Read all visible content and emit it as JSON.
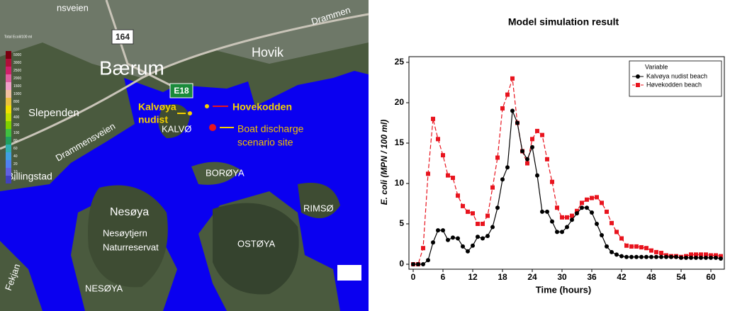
{
  "map": {
    "legend": {
      "title": "Total Ecoli/100 ml",
      "labels": [
        "5000",
        "3000",
        "2500",
        "2000",
        "1500",
        "1000",
        "800",
        "600",
        "400",
        "200",
        "100",
        "80",
        "60",
        "40",
        "20",
        "10",
        "0"
      ]
    },
    "labels": {
      "road_top": "nsveien",
      "road_164": "164",
      "town": "Bærum",
      "road_e18": "E18",
      "hovik": "Hovik",
      "drammen": "Drammen",
      "slependen": "Slependen",
      "kalvoya_1": "Kalvøya",
      "kalvoya_2": "nudist",
      "hovekodden": "Hovekodden",
      "boat_1": "Boat discharge",
      "boat_2": "scenario site",
      "kalvoya_island": "KALVØ",
      "boroya": "BORØYA",
      "billingstad": "Billingstad",
      "drammensveien": "Drammensveien",
      "nesoya": "Nesøya",
      "nesoytjern_1": "Nesøytjern",
      "nesoytjern_2": "Naturreservat",
      "ostoya": "OSTØYA",
      "rimso": "RIMSØ",
      "nesoya_small": "NESØYA",
      "fekjan": "Fekjan"
    }
  },
  "chart_data": {
    "type": "line",
    "title": "Model simulation result",
    "x_label": "Time (hours)",
    "y_label": "E. coli (MPN / 100 ml)",
    "legend_title": "Variable",
    "legend": "upper right",
    "x": [
      0,
      1,
      2,
      3,
      4,
      5,
      6,
      7,
      8,
      9,
      10,
      11,
      12,
      13,
      14,
      15,
      16,
      17,
      18,
      19,
      20,
      21,
      22,
      23,
      24,
      25,
      26,
      27,
      28,
      29,
      30,
      31,
      32,
      33,
      34,
      35,
      36,
      37,
      38,
      39,
      40,
      41,
      42,
      43,
      44,
      45,
      46,
      47,
      48,
      49,
      50,
      51,
      52,
      53,
      54,
      55,
      56,
      57,
      58,
      59,
      60,
      61,
      62
    ],
    "xlim": [
      0,
      62
    ],
    "ylim": [
      0,
      25
    ],
    "xticks": [
      0,
      6,
      12,
      18,
      24,
      30,
      36,
      42,
      48,
      54,
      60
    ],
    "yticks": [
      0,
      5,
      10,
      15,
      20,
      25
    ],
    "series": [
      {
        "name": "Kalvøya nudist beach",
        "color": "#000000",
        "marker": "circle",
        "dash": "solid",
        "values": [
          0,
          0,
          0,
          0.5,
          2.7,
          4.2,
          4.2,
          3,
          3.3,
          3.2,
          2.2,
          1.6,
          2.3,
          3.4,
          3.2,
          3.5,
          4.6,
          7,
          10.5,
          12,
          19,
          17.5,
          14,
          13,
          14.5,
          11,
          6.5,
          6.5,
          5.3,
          4,
          4,
          4.6,
          5.5,
          6.3,
          7,
          7,
          6.4,
          5,
          3.6,
          2.2,
          1.5,
          1.2,
          1,
          0.9,
          0.9,
          0.9,
          0.9,
          0.9,
          0.9,
          0.9,
          0.9,
          0.9,
          0.9,
          0.9,
          0.8,
          0.8,
          0.8,
          0.8,
          0.8,
          0.8,
          0.8,
          0.8,
          0.7
        ]
      },
      {
        "name": "Høvekodden beach",
        "color": "#e8141e",
        "marker": "square",
        "dash": "dashed",
        "values": [
          0,
          0,
          2,
          11.2,
          18,
          15.5,
          13.5,
          11,
          10.7,
          8.5,
          7.2,
          6.5,
          6.3,
          5,
          5,
          6,
          9.5,
          13.2,
          19.3,
          21,
          23,
          17.5,
          14,
          12.5,
          15.5,
          16.5,
          16,
          13,
          10.2,
          7,
          5.8,
          5.8,
          6,
          6.6,
          7.6,
          8,
          8.2,
          8.3,
          7.6,
          6.5,
          5.1,
          4,
          3.2,
          2.3,
          2.2,
          2.2,
          2.1,
          2,
          1.7,
          1.5,
          1.4,
          1.1,
          1,
          1,
          0.9,
          1,
          1.2,
          1.2,
          1.2,
          1.2,
          1.1,
          1.1,
          1
        ]
      }
    ]
  }
}
